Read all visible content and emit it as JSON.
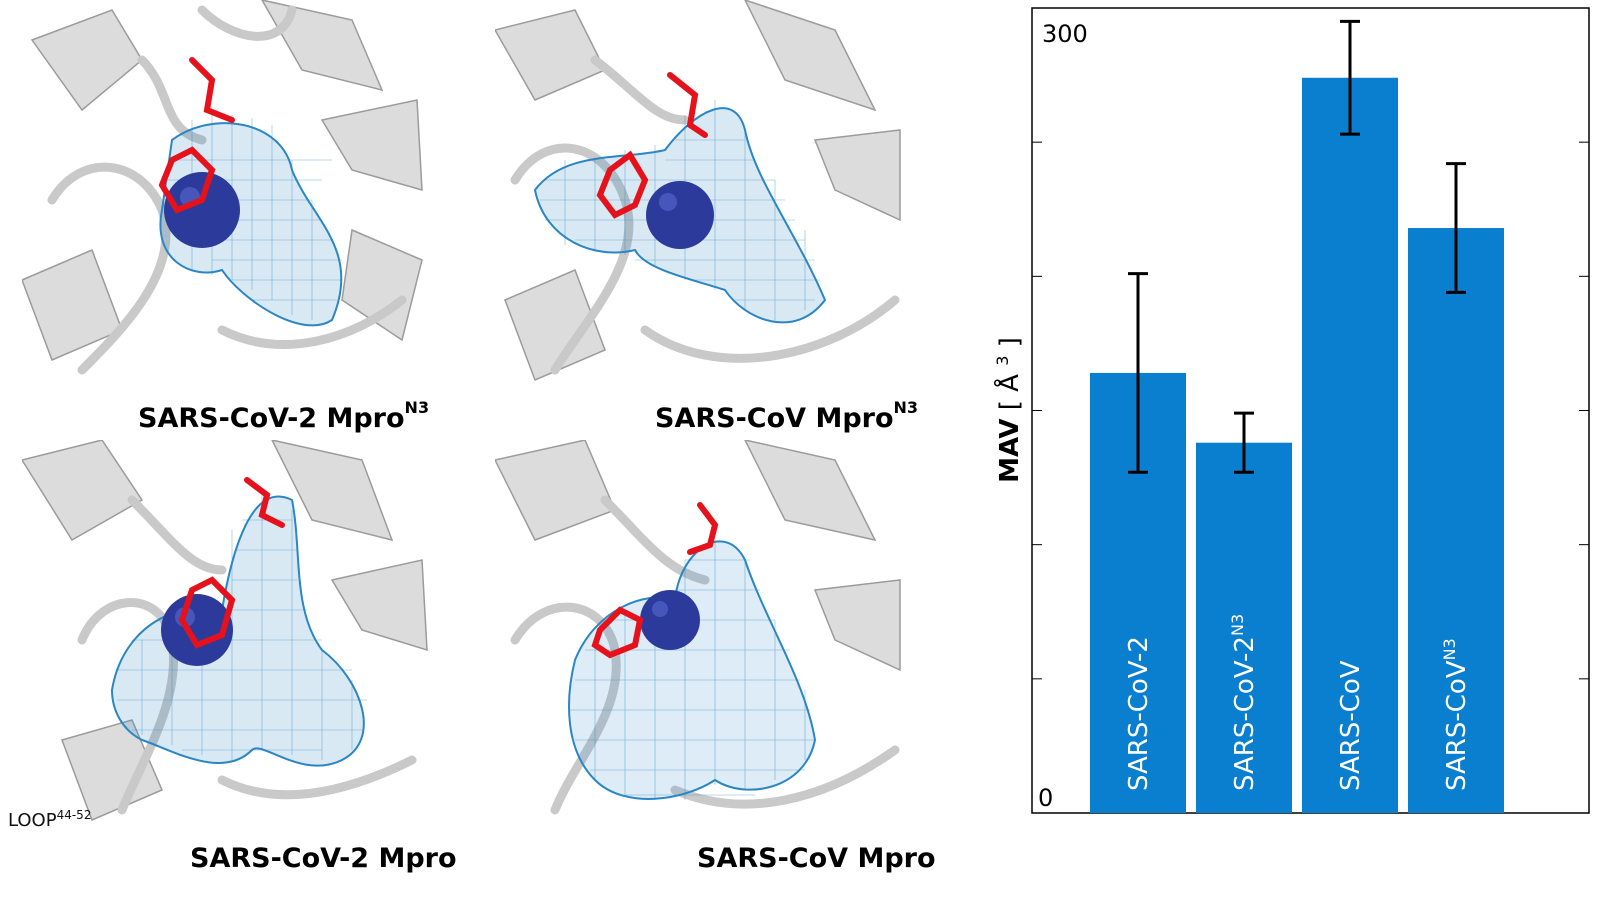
{
  "panels": [
    {
      "id": "p1",
      "title": "SARS-CoV-2 Mpro",
      "superscript": "N3"
    },
    {
      "id": "p2",
      "title": "SARS-CoV Mpro",
      "superscript": "N3"
    },
    {
      "id": "p3",
      "title": "SARS-CoV-2 Mpro",
      "superscript": ""
    },
    {
      "id": "p4",
      "title": "SARS-CoV Mpro",
      "superscript": ""
    }
  ],
  "loop_label": {
    "text": "LOOP",
    "superscript": "44-52"
  },
  "colors": {
    "bar": "#0a7fd0",
    "mesh": "#2a86c4",
    "sphere": "#2c3a9c",
    "residue": "#e5121b",
    "ribbon": "#d8d8d8",
    "ribbon_edge": "#9a9a9a"
  },
  "chart_data": {
    "type": "bar",
    "categories": [
      {
        "base": "SARS-CoV-2",
        "sup": ""
      },
      {
        "base": "SARS-CoV-2",
        "sup": "N3"
      },
      {
        "base": "SARS-CoV",
        "sup": ""
      },
      {
        "base": "SARS-CoV",
        "sup": "N3"
      }
    ],
    "values": [
      164,
      138,
      274,
      218
    ],
    "errors": [
      37,
      11,
      21,
      24
    ],
    "ylabel": "MAV",
    "ylabel_unit": "Å",
    "ylabel_unit_sup": "3",
    "ylim": [
      0,
      300
    ],
    "yticks_labeled": [
      0,
      300
    ],
    "minor_ticks": [
      50,
      100,
      150,
      200,
      250
    ],
    "grid": false,
    "legend": "none"
  }
}
